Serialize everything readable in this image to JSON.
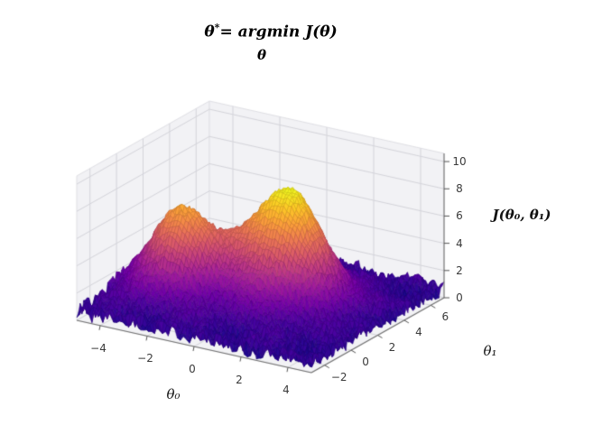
{
  "title": {
    "theta": "θ",
    "star": "*",
    "rest": "= argmin J(θ)",
    "subscript": "θ"
  },
  "chart_data": {
    "type": "surface",
    "title": "θ* = argmin_θ J(θ)",
    "xlabel": "θ₀",
    "ylabel": "θ₁",
    "zlabel": "J(θ₀, θ₁)",
    "xlim": [
      -5,
      5
    ],
    "ylim": [
      -3,
      7
    ],
    "zlim": [
      0,
      10.6
    ],
    "x_ticks": [
      -4,
      -2,
      0,
      2,
      4
    ],
    "y_ticks": [
      -2,
      0,
      2,
      4,
      6
    ],
    "z_ticks": [
      0,
      2,
      4,
      6,
      8,
      10
    ],
    "grid": true,
    "legend": false,
    "colormap": "plasma",
    "colormap_stops": [
      "#0d0887",
      "#46039f",
      "#7201a8",
      "#9c179e",
      "#bd3786",
      "#d8576b",
      "#ed7953",
      "#fb9f3a",
      "#fdca26",
      "#f0f921"
    ],
    "pane_color": "#f2f2f5",
    "grid_color": "#d4d4da",
    "axis_color": "#6e6e6e",
    "tick_color": "#3a3a3a",
    "view": {
      "elev": 30,
      "azim": -60
    },
    "surface_function": {
      "description": "noisy cost surface J(θ0,θ1): low jagged valley (~0.5-1.5) with two gaussian peaks, tall yellow peak ~9 and orange peak ~7",
      "base": 0.7,
      "peaks": [
        {
          "x": 0.9,
          "y": 2.4,
          "amplitude": 8.3,
          "sigma": 1.35
        },
        {
          "x": -2.7,
          "y": 0.9,
          "amplitude": 6.3,
          "sigma": 1.2
        }
      ],
      "ripple": {
        "amplitude": 0.3,
        "freq_x": 1.9,
        "freq_y": 1.7
      },
      "noise_amplitude": 0.55,
      "grid_n": 78
    }
  }
}
